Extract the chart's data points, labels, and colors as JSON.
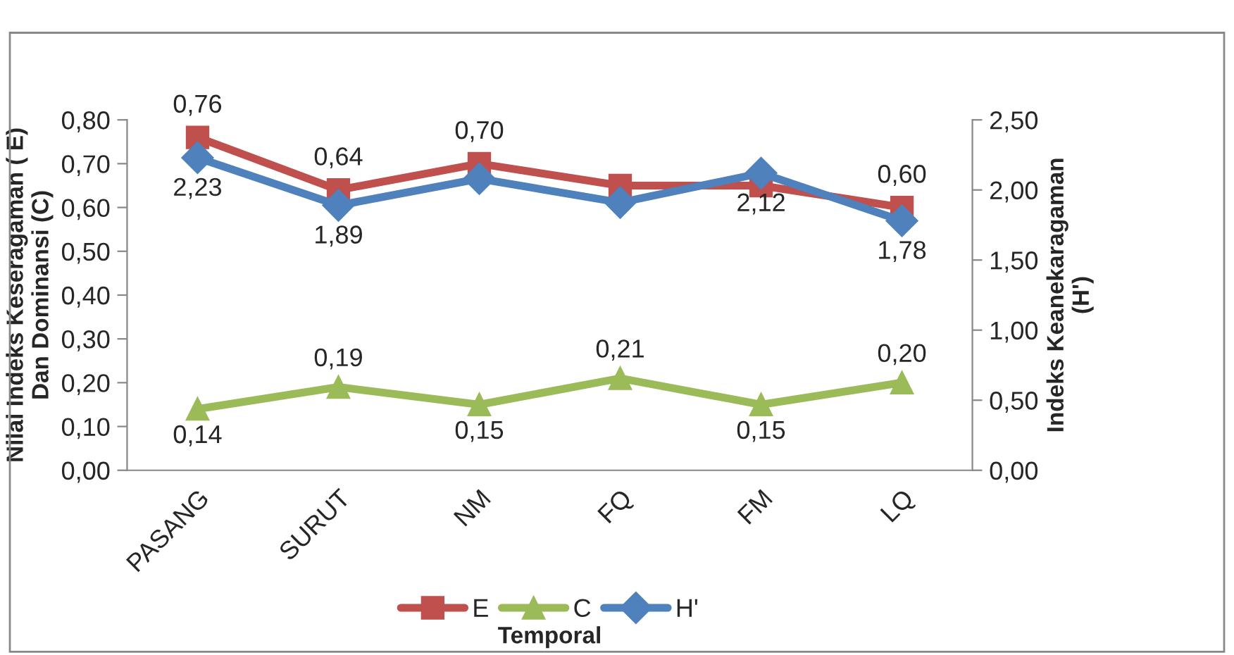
{
  "chart_data": {
    "type": "line",
    "categories": [
      "PASANG",
      "SURUT",
      "NM",
      "FQ",
      "FM",
      "LQ"
    ],
    "xlabel": "Temporal",
    "ylabel": "Nilai Indeks Keseragaman ( E) Dan Dominansi (C)",
    "y2label": "Indeks Keanekaragaman (H')",
    "series": [
      {
        "name": "E",
        "color": "#c0504d",
        "marker": "square",
        "values": [
          0.76,
          0.64,
          0.7,
          0.65,
          0.65,
          0.6
        ],
        "value_labels": [
          "0,76",
          "0,64",
          "0,70",
          null,
          null,
          "0,60"
        ]
      },
      {
        "name": "C",
        "color": "#9bbb59",
        "marker": "triangle",
        "values": [
          0.14,
          0.19,
          0.15,
          0.21,
          0.15,
          0.2
        ],
        "value_labels": [
          "0,14",
          "0,19",
          "0,15",
          "0,21",
          "0,15",
          "0,20"
        ]
      },
      {
        "name": "H'",
        "color": "#4f81bd",
        "marker": "diamond",
        "axis": "y2",
        "values": [
          2.23,
          1.89,
          2.08,
          1.91,
          2.12,
          1.78
        ],
        "value_labels": [
          "2,23",
          "1,89",
          null,
          null,
          "2,12",
          "1,78"
        ]
      }
    ],
    "ylim": [
      0,
      0.8
    ],
    "yticks": [
      {
        "value": 0,
        "label": "0,00"
      },
      {
        "value": 0.1,
        "label": "0,10"
      },
      {
        "value": 0.2,
        "label": "0,20"
      },
      {
        "value": 0.3,
        "label": "0,30"
      },
      {
        "value": 0.4,
        "label": "0,40"
      },
      {
        "value": 0.5,
        "label": "0,50"
      },
      {
        "value": 0.6,
        "label": "0,60"
      },
      {
        "value": 0.7,
        "label": "0,70"
      },
      {
        "value": 0.8,
        "label": "0,80"
      }
    ],
    "y2lim": [
      0,
      2.5
    ],
    "y2ticks": [
      {
        "value": 0,
        "label": "0,00"
      },
      {
        "value": 0.5,
        "label": "0,50"
      },
      {
        "value": 1,
        "label": "1,00"
      },
      {
        "value": 1.5,
        "label": "1,50"
      },
      {
        "value": 2,
        "label": "2,00"
      },
      {
        "value": 2.5,
        "label": "2,50"
      }
    ],
    "grid": false,
    "legend": "bottom",
    "line_style": "solid"
  }
}
